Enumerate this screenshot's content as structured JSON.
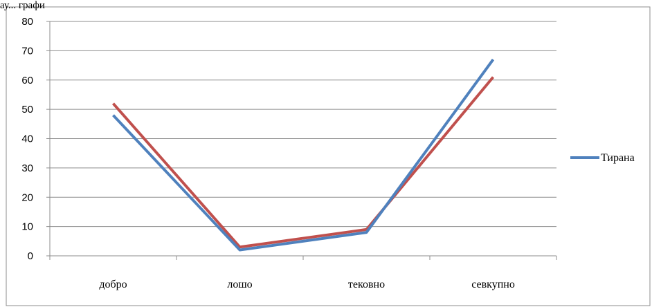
{
  "caption": "ау... графи",
  "chart_data": {
    "type": "line",
    "categories": [
      "добро",
      "лошо",
      "тековно",
      "севкупно"
    ],
    "ylim": [
      0,
      80
    ],
    "yticks": [
      0,
      10,
      20,
      30,
      40,
      50,
      60,
      70,
      80
    ],
    "grid": true,
    "legend_position": "right",
    "series": [
      {
        "name": "Тирана",
        "color": "#4F81BD",
        "values": [
          48,
          2,
          8,
          67
        ]
      },
      {
        "name": "",
        "color": "#C0504D",
        "values": [
          52,
          3,
          9,
          61
        ]
      }
    ]
  }
}
